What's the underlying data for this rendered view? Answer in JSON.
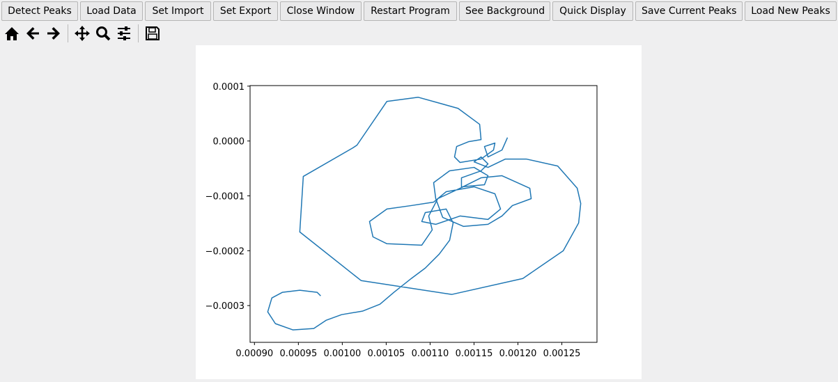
{
  "toolbar": {
    "buttons": [
      "Detect Peaks",
      "Load Data",
      "Set Import",
      "Set Export",
      "Close Window",
      "Restart Program",
      "See Background",
      "Quick Display",
      "Save Current Peaks",
      "Load New Peaks"
    ]
  },
  "chart_data": {
    "type": "line",
    "x": [
      0.0009754,
      0.0009714,
      0.0009516,
      0.0009317,
      0.0009198,
      0.0009151,
      0.0009238,
      0.0009437,
      0.0009675,
      0.0009818,
      0.0009992,
      0.001023,
      0.0010429,
      0.0010587,
      0.0010786,
      0.0010945,
      0.0011103,
      0.0011222,
      0.0011262,
      0.0011183,
      0.0010945,
      0.0010905,
      0.0011064,
      0.0011341,
      0.0011659,
      0.0011802,
      0.0011738,
      0.00115,
      0.0011183,
      0.001104,
      0.0010786,
      0.0010508,
      0.001031,
      0.0010349,
      0.0010508,
      0.0010905,
      0.0011024,
      0.0010984,
      0.0011087,
      0.0011341,
      0.001158,
      0.0011818,
      0.0012135,
      0.0012151,
      0.0011937,
      0.0011818,
      0.0011659,
      0.0011381,
      0.0011143,
      0.0011064,
      0.001104,
      0.0011222,
      0.00115,
      0.0011659,
      0.0011619,
      0.0011357,
      0.0011357,
      0.001158,
      0.0011659,
      0.001158,
      0.00115,
      0.0011659,
      0.0011857,
      0.0012095,
      0.0012453,
      0.0012675,
      0.0012715,
      0.0012691,
      0.0012516,
      0.0012056,
      0.0011246,
      0.0010214,
      0.0009516,
      0.0009556,
      0.0010119,
      0.0010167,
      0.0010508,
      0.0010865,
      0.0011318,
      0.0011564,
      0.001158,
      0.0011437,
      0.0011302,
      0.0011278,
      0.0011341,
      0.001158,
      0.0011722,
      0.0011738,
      0.0011619,
      0.0011659,
      0.0011818,
      0.0011881
    ],
    "series": [
      {
        "color": "#1f77b4",
        "values": [
          -0.0002823,
          -0.0002759,
          -0.0002721,
          -0.0002759,
          -0.0002861,
          -0.0003114,
          -0.0003329,
          -0.0003443,
          -0.0003418,
          -0.0003266,
          -0.0003165,
          -0.0003101,
          -0.0002975,
          -0.0002759,
          -0.0002506,
          -0.0002316,
          -0.0002063,
          -0.000181,
          -0.0001494,
          -0.000124,
          -0.0001304,
          -0.0001468,
          -0.0001519,
          -0.0001367,
          -0.000143,
          -0.000124,
          -9.62e-05,
          -8.35e-05,
          -9.24e-05,
          -0.0001114,
          -0.0001177,
          -0.000124,
          -0.0001468,
          -0.0001747,
          -0.0001873,
          -0.0001899,
          -0.000162,
          -0.0001367,
          -0.0001051,
          -8.61e-05,
          -6.71e-05,
          -6.33e-05,
          -8.61e-05,
          -0.0001051,
          -0.0001177,
          -0.0001367,
          -0.0001519,
          -0.0001557,
          -0.0001392,
          -0.0001051,
          -7.59e-05,
          -5.44e-05,
          -4.81e-05,
          -6.33e-05,
          -7.97e-05,
          -8.35e-05,
          -6.71e-05,
          -5.44e-05,
          -4.18e-05,
          -2.91e-05,
          -3.8e-05,
          -4.81e-05,
          -3.29e-05,
          -3.29e-05,
          -4.56e-05,
          -8.61e-05,
          -0.0001139,
          -0.0001494,
          -0.0002,
          -0.0002506,
          -0.0002797,
          -0.0002544,
          -0.0001658,
          -6.46e-05,
          -1.27e-05,
          -7.6e-06,
          7.22e-05,
          7.97e-05,
          5.95e-05,
          3.04e-05,
          2.5e-06,
          -1.3e-06,
          -1.01e-05,
          -2.91e-05,
          -3.92e-05,
          -3.29e-05,
          -1.65e-05,
          -3.8e-06,
          -1.01e-05,
          -2.91e-05,
          -1.65e-05,
          6.3e-06
        ]
      }
    ],
    "xlim": [
      0.000895,
      0.00129
    ],
    "ylim": [
      -0.000367,
      0.000101
    ],
    "xticks": [
      {
        "value": 0.0009,
        "label": "0.00090"
      },
      {
        "value": 0.00095,
        "label": "0.00095"
      },
      {
        "value": 0.001,
        "label": "0.00100"
      },
      {
        "value": 0.00105,
        "label": "0.00105"
      },
      {
        "value": 0.0011,
        "label": "0.00110"
      },
      {
        "value": 0.00115,
        "label": "0.00115"
      },
      {
        "value": 0.0012,
        "label": "0.00120"
      },
      {
        "value": 0.00125,
        "label": "0.00125"
      }
    ],
    "yticks": [
      {
        "value": 0.0001,
        "label": "0.0001"
      },
      {
        "value": 0,
        "label": "0.0000"
      },
      {
        "value": -0.0001,
        "label": "−0.0001"
      },
      {
        "value": -0.0002,
        "label": "−0.0002"
      },
      {
        "value": -0.0003,
        "label": "−0.0003"
      }
    ],
    "grid": false
  }
}
